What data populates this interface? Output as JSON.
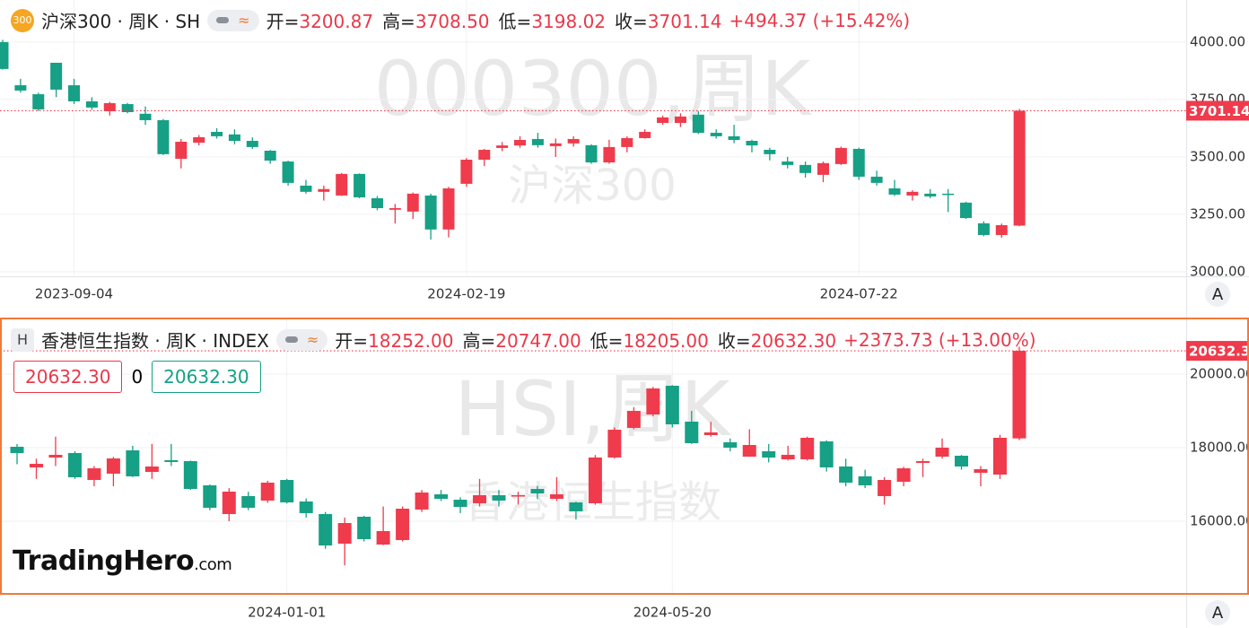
{
  "branding": {
    "name": "TradingHero",
    "suffix": ".com"
  },
  "chart_data": [
    {
      "type": "candlestick",
      "badge": "300",
      "title": "沪深300 · 周K · SH",
      "stats": [
        {
          "label": "开=",
          "value": "3200.87"
        },
        {
          "label": "高=",
          "value": "3708.50"
        },
        {
          "label": "低=",
          "value": "3198.02"
        },
        {
          "label": "收=",
          "value": "3701.14"
        }
      ],
      "change": "+494.37 (+15.42%)",
      "watermark": "000300,周K",
      "watermark_sub": "沪深300",
      "axis_button": "A",
      "up_color": "#ef3b4c",
      "down_color": "#16a085",
      "grid": true,
      "ylim": [
        2988,
        4152
      ],
      "yticks": [
        {
          "value": 3000,
          "label": "3000.00"
        },
        {
          "value": 3250,
          "label": "3250.00"
        },
        {
          "value": 3500,
          "label": "3500.00"
        },
        {
          "value": 3750,
          "label": "3750.00"
        },
        {
          "value": 4000,
          "label": "4000.00"
        }
      ],
      "price_marker": {
        "value": 3701.14,
        "label": "3701.14"
      },
      "categories": [
        null,
        null,
        null,
        null,
        "2023-09-04",
        null,
        null,
        null,
        null,
        null,
        null,
        null,
        null,
        null,
        null,
        null,
        null,
        null,
        null,
        null,
        null,
        null,
        null,
        null,
        null,
        null,
        "2024-02-19",
        null,
        null,
        null,
        null,
        null,
        null,
        null,
        null,
        null,
        null,
        null,
        null,
        null,
        null,
        null,
        null,
        null,
        null,
        null,
        null,
        null,
        "2024-07-22",
        null,
        null,
        null,
        null,
        null,
        null,
        null,
        null,
        null
      ],
      "open": [
        4000,
        3812,
        3773,
        3910,
        3812,
        3742,
        3699,
        3730,
        3688,
        3660,
        3492,
        3562,
        3609,
        3598,
        3570,
        3527,
        3480,
        3375,
        3348,
        3332,
        3426,
        3320,
        3270,
        3262,
        3332,
        3184,
        3383,
        3488,
        3539,
        3550,
        3578,
        3547,
        3559,
        3551,
        3476,
        3543,
        3582,
        3648,
        3648,
        3684,
        3605,
        3590,
        3570,
        3531,
        3480,
        3465,
        3422,
        3469,
        3535,
        3414,
        3363,
        3332,
        3340,
        3340,
        3301,
        3211,
        3160,
        3200.87
      ],
      "high": [
        4010,
        3840,
        3780,
        3910,
        3840,
        3760,
        3740,
        3735,
        3720,
        3665,
        3578,
        3595,
        3625,
        3620,
        3585,
        3530,
        3484,
        3400,
        3375,
        3430,
        3428,
        3330,
        3295,
        3345,
        3340,
        3370,
        3495,
        3535,
        3565,
        3590,
        3605,
        3580,
        3590,
        3555,
        3575,
        3590,
        3620,
        3680,
        3690,
        3700,
        3620,
        3640,
        3575,
        3540,
        3500,
        3480,
        3480,
        3545,
        3540,
        3440,
        3400,
        3355,
        3360,
        3360,
        3305,
        3220,
        3210,
        3708.5
      ],
      "low": [
        3880,
        3780,
        3700,
        3760,
        3730,
        3705,
        3680,
        3690,
        3640,
        3508,
        3450,
        3550,
        3580,
        3555,
        3535,
        3470,
        3375,
        3340,
        3310,
        3330,
        3320,
        3268,
        3210,
        3230,
        3140,
        3150,
        3370,
        3460,
        3525,
        3540,
        3540,
        3500,
        3545,
        3470,
        3470,
        3520,
        3580,
        3640,
        3630,
        3600,
        3580,
        3560,
        3520,
        3485,
        3450,
        3410,
        3390,
        3465,
        3400,
        3375,
        3330,
        3310,
        3320,
        3260,
        3230,
        3155,
        3148,
        3198.02
      ],
      "close": [
        3883,
        3789,
        3707,
        3793,
        3742,
        3715,
        3734,
        3695,
        3660,
        3512,
        3566,
        3586,
        3590,
        3570,
        3543,
        3484,
        3387,
        3348,
        3360,
        3426,
        3324,
        3277,
        3277,
        3340,
        3184,
        3363,
        3488,
        3531,
        3550,
        3574,
        3551,
        3559,
        3578,
        3476,
        3543,
        3582,
        3609,
        3672,
        3676,
        3605,
        3590,
        3574,
        3550,
        3512,
        3465,
        3430,
        3473,
        3539,
        3414,
        3387,
        3336,
        3348,
        3328,
        3336,
        3234,
        3160,
        3203,
        3701.14
      ]
    },
    {
      "type": "candlestick",
      "badge": "H",
      "title": "香港恒生指数 · 周K · INDEX",
      "stats": [
        {
          "label": "开=",
          "value": "18252.00"
        },
        {
          "label": "高=",
          "value": "20747.00"
        },
        {
          "label": "低=",
          "value": "18205.00"
        },
        {
          "label": "收=",
          "value": "20632.30"
        }
      ],
      "change": "+2373.73 (+13.00%)",
      "order_boxes": [
        "20632.30",
        "0",
        "20632.30"
      ],
      "watermark": "HSI,周K",
      "watermark_sub": "香港恒生指数",
      "axis_button": "A",
      "up_color": "#ef3b4c",
      "down_color": "#16a085",
      "grid": true,
      "ylim": [
        14024,
        21463
      ],
      "yticks": [
        {
          "value": 16000,
          "label": "16000.00"
        },
        {
          "value": 18000,
          "label": "18000.00"
        },
        {
          "value": 20000,
          "label": "20000.00"
        }
      ],
      "price_marker": {
        "value": 20632.3,
        "label": "20632.30"
      },
      "categories": [
        null,
        null,
        null,
        null,
        null,
        null,
        null,
        null,
        null,
        null,
        null,
        null,
        null,
        null,
        "2024-01-01",
        null,
        null,
        null,
        null,
        null,
        null,
        null,
        null,
        null,
        null,
        null,
        null,
        null,
        null,
        null,
        null,
        null,
        null,
        null,
        "2024-05-20",
        null,
        null,
        null,
        null,
        null,
        null,
        null,
        null,
        null,
        null,
        null,
        null,
        null,
        null,
        null,
        null,
        null,
        null
      ],
      "open": [
        18024,
        17463,
        17732,
        17854,
        17122,
        17293,
        17927,
        17341,
        17659,
        17634,
        16976,
        16195,
        16683,
        16561,
        17122,
        16537,
        16195,
        15390,
        16122,
        15366,
        15488,
        16317,
        16732,
        16585,
        16488,
        16707,
        16683,
        16878,
        16610,
        16512,
        16488,
        17732,
        18537,
        18902,
        19683,
        18707,
        18341,
        18146,
        17756,
        17902,
        17683,
        17683,
        18170,
        17488,
        17220,
        16683,
        17073,
        17586,
        17756,
        17780,
        17317,
        17268,
        18252
      ],
      "high": [
        18100,
        17700,
        18300,
        17900,
        17500,
        17750,
        18050,
        18100,
        18100,
        17650,
        17000,
        16900,
        16800,
        17100,
        17150,
        16620,
        16250,
        16100,
        16150,
        16400,
        16400,
        16850,
        16850,
        16650,
        17150,
        16850,
        16800,
        16960,
        17200,
        16530,
        17800,
        18550,
        19100,
        19650,
        19700,
        19000,
        18700,
        18250,
        18500,
        18100,
        18050,
        18300,
        18200,
        17700,
        17400,
        17200,
        17480,
        17700,
        18250,
        17800,
        17500,
        18350,
        20747
      ],
      "low": [
        17550,
        17150,
        17500,
        17150,
        16950,
        16950,
        17200,
        17150,
        17500,
        16850,
        16300,
        16000,
        16300,
        16500,
        16480,
        16100,
        15250,
        14800,
        15450,
        15350,
        15450,
        16250,
        16550,
        16220,
        16400,
        16400,
        16450,
        16600,
        16550,
        16050,
        16450,
        17700,
        18500,
        18850,
        18550,
        18100,
        18300,
        17900,
        17750,
        17600,
        17650,
        17650,
        17350,
        16950,
        16900,
        16450,
        16950,
        17200,
        17700,
        17400,
        16950,
        17150,
        18205
      ],
      "close": [
        17854,
        17560,
        17805,
        17195,
        17439,
        17707,
        17220,
        17488,
        17610,
        16878,
        16366,
        16805,
        16366,
        17049,
        16512,
        16220,
        15341,
        15951,
        15512,
        15732,
        16341,
        16780,
        16610,
        16390,
        16707,
        16561,
        16707,
        16756,
        16732,
        16268,
        17732,
        18488,
        19000,
        19610,
        18634,
        18122,
        18415,
        18000,
        18073,
        17732,
        17805,
        18268,
        17463,
        17049,
        16976,
        17122,
        17439,
        17634,
        18000,
        17488,
        17415,
        18268,
        20632.3
      ]
    }
  ]
}
